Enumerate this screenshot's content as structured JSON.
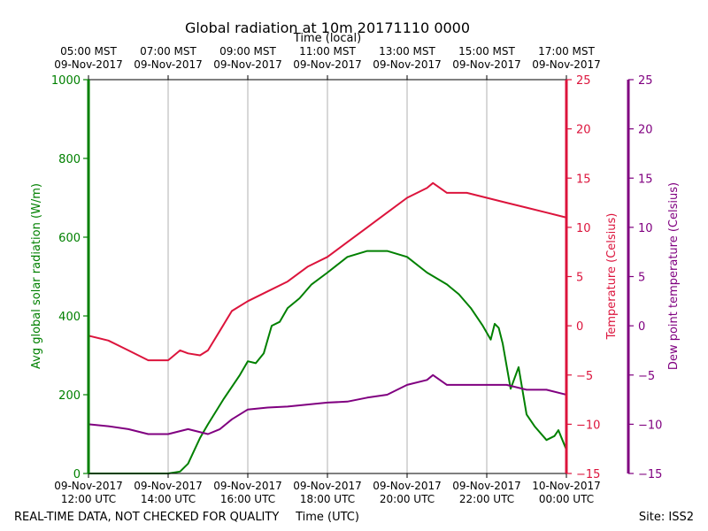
{
  "chart_data": {
    "type": "line",
    "title": "Global radiation at 10m 20171110 0000",
    "xlabel_top": "Time (local)",
    "xlabel_bottom": "Time (UTC)",
    "footer_left": "REAL-TIME DATA, NOT CHECKED FOR QUALITY",
    "footer_right": "Site: ISS2",
    "x_hours_utc_range": [
      12,
      24
    ],
    "x_ticks": [
      {
        "hour": 12,
        "local_time": "05:00 MST",
        "local_date": "09-Nov-2017",
        "utc_date": "09-Nov-2017",
        "utc_time": "12:00 UTC"
      },
      {
        "hour": 14,
        "local_time": "07:00 MST",
        "local_date": "09-Nov-2017",
        "utc_date": "09-Nov-2017",
        "utc_time": "14:00 UTC"
      },
      {
        "hour": 16,
        "local_time": "09:00 MST",
        "local_date": "09-Nov-2017",
        "utc_date": "09-Nov-2017",
        "utc_time": "16:00 UTC"
      },
      {
        "hour": 18,
        "local_time": "11:00 MST",
        "local_date": "09-Nov-2017",
        "utc_date": "09-Nov-2017",
        "utc_time": "18:00 UTC"
      },
      {
        "hour": 20,
        "local_time": "13:00 MST",
        "local_date": "09-Nov-2017",
        "utc_date": "09-Nov-2017",
        "utc_time": "20:00 UTC"
      },
      {
        "hour": 22,
        "local_time": "15:00 MST",
        "local_date": "09-Nov-2017",
        "utc_date": "09-Nov-2017",
        "utc_time": "22:00 UTC"
      },
      {
        "hour": 24,
        "local_time": "17:00 MST",
        "local_date": "09-Nov-2017",
        "utc_date": "10-Nov-2017",
        "utc_time": "00:00 UTC"
      }
    ],
    "y_left": {
      "label": "Avg global solar radiation (W/m)",
      "range": [
        0,
        1000
      ],
      "ticks": [
        0,
        200,
        400,
        600,
        800,
        1000
      ],
      "color": "#008000"
    },
    "y_right1": {
      "label": "Temperature (Celsius)",
      "range": [
        -15,
        25
      ],
      "ticks": [
        -15,
        -10,
        -5,
        0,
        5,
        10,
        15,
        20,
        25
      ],
      "color": "#dc143c"
    },
    "y_right2": {
      "label": "Dew point temperature (Celsius)",
      "range": [
        -15,
        25
      ],
      "ticks": [
        -15,
        -10,
        -5,
        0,
        5,
        10,
        15,
        20,
        25
      ],
      "color": "#800080"
    },
    "series": [
      {
        "name": "Avg global solar radiation",
        "axis": "left",
        "color": "#008000",
        "x": [
          12,
          13,
          14,
          14.3,
          14.5,
          14.8,
          15,
          15.4,
          15.8,
          16,
          16.2,
          16.4,
          16.6,
          16.8,
          17,
          17.3,
          17.6,
          18,
          18.5,
          19,
          19.5,
          20,
          20.5,
          21,
          21.3,
          21.6,
          21.9,
          22.1,
          22.2,
          22.3,
          22.4,
          22.6,
          22.8,
          23.0,
          23.2,
          23.5,
          23.7,
          23.8,
          24
        ],
        "values": [
          0,
          0,
          0,
          5,
          25,
          90,
          125,
          190,
          250,
          285,
          280,
          305,
          375,
          385,
          420,
          445,
          480,
          510,
          550,
          565,
          565,
          550,
          510,
          480,
          455,
          420,
          375,
          340,
          380,
          370,
          330,
          215,
          270,
          150,
          120,
          85,
          95,
          110,
          60
        ]
      },
      {
        "name": "Temperature",
        "axis": "right1",
        "color": "#dc143c",
        "x": [
          12,
          12.5,
          13,
          13.5,
          14,
          14.3,
          14.5,
          14.8,
          15,
          15.3,
          15.6,
          16,
          16.5,
          17,
          17.5,
          18,
          18.5,
          19,
          19.5,
          20,
          20.5,
          20.65,
          21,
          21.5,
          22,
          22.5,
          23,
          23.5,
          24
        ],
        "values": [
          -1.0,
          -1.5,
          -2.5,
          -3.5,
          -3.5,
          -2.5,
          -2.8,
          -3.0,
          -2.5,
          -0.5,
          1.5,
          2.5,
          3.5,
          4.5,
          6.0,
          7.0,
          8.5,
          10.0,
          11.5,
          13.0,
          14.0,
          14.5,
          13.5,
          13.5,
          13.0,
          12.5,
          12.0,
          11.5,
          11.0
        ]
      },
      {
        "name": "Dew point temperature",
        "axis": "right2",
        "color": "#800080",
        "x": [
          12,
          12.5,
          13,
          13.5,
          14,
          14.5,
          15,
          15.3,
          15.6,
          16,
          16.5,
          17,
          17.5,
          18,
          18.5,
          19,
          19.5,
          20,
          20.5,
          20.65,
          21,
          21.5,
          22,
          22.5,
          23,
          23.5,
          24
        ],
        "values": [
          -10.0,
          -10.2,
          -10.5,
          -11.0,
          -11.0,
          -10.5,
          -11.0,
          -10.5,
          -9.5,
          -8.5,
          -8.3,
          -8.2,
          -8.0,
          -7.8,
          -7.7,
          -7.3,
          -7.0,
          -6.0,
          -5.5,
          -5.0,
          -6.0,
          -6.0,
          -6.0,
          -6.0,
          -6.5,
          -6.5,
          -7.0
        ]
      }
    ]
  }
}
